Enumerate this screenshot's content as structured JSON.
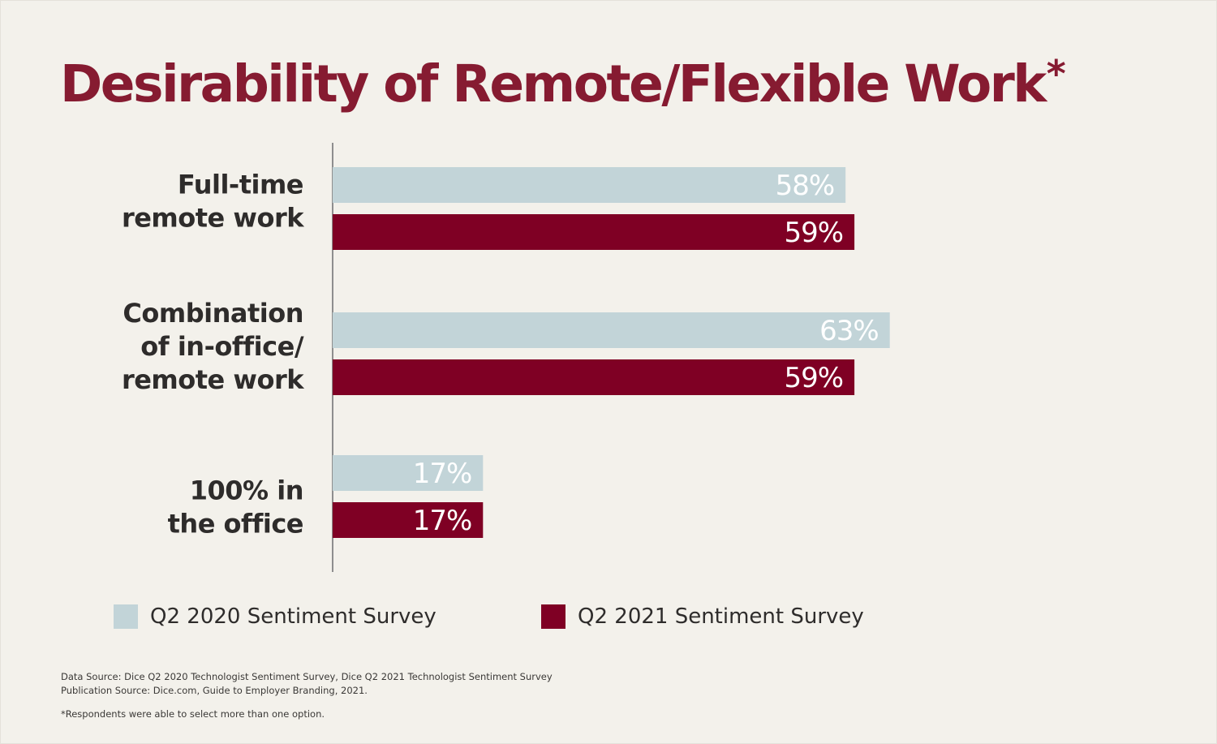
{
  "title": "Desirability of Remote/Flexible Work",
  "title_mark": "*",
  "colors": {
    "background": "#F3F1EB",
    "title": "#861B31",
    "series_2020": "#C2D4D8",
    "series_2021": "#7F0024",
    "axis": "#8E8E8E",
    "text": "#2E2C2B"
  },
  "chart_data": {
    "type": "bar",
    "orientation": "horizontal",
    "categories": [
      [
        "Full-time",
        "remote work"
      ],
      [
        "Combination",
        "of in-office/",
        "remote work"
      ],
      [
        "100% in",
        "the office"
      ]
    ],
    "series": [
      {
        "name": "Q2 2020 Sentiment Survey",
        "values": [
          58,
          63,
          17
        ],
        "labels": [
          "58%",
          "63%",
          "17%"
        ]
      },
      {
        "name": "Q2 2021 Sentiment Survey",
        "values": [
          59,
          59,
          17
        ],
        "labels": [
          "59%",
          "59%",
          "17%"
        ]
      }
    ],
    "unit": "%",
    "xlim": [
      0,
      100
    ],
    "grid": false,
    "legend_position": "bottom"
  },
  "footnotes": {
    "data_source": "Data Source: Dice Q2 2020 Technologist Sentiment Survey, Dice Q2 2021 Technologist Sentiment Survey",
    "publication_source": "Publication Source: Dice.com, Guide to Employer Branding, 2021.",
    "asterisk_note": "*Respondents were able to select more than one option."
  }
}
